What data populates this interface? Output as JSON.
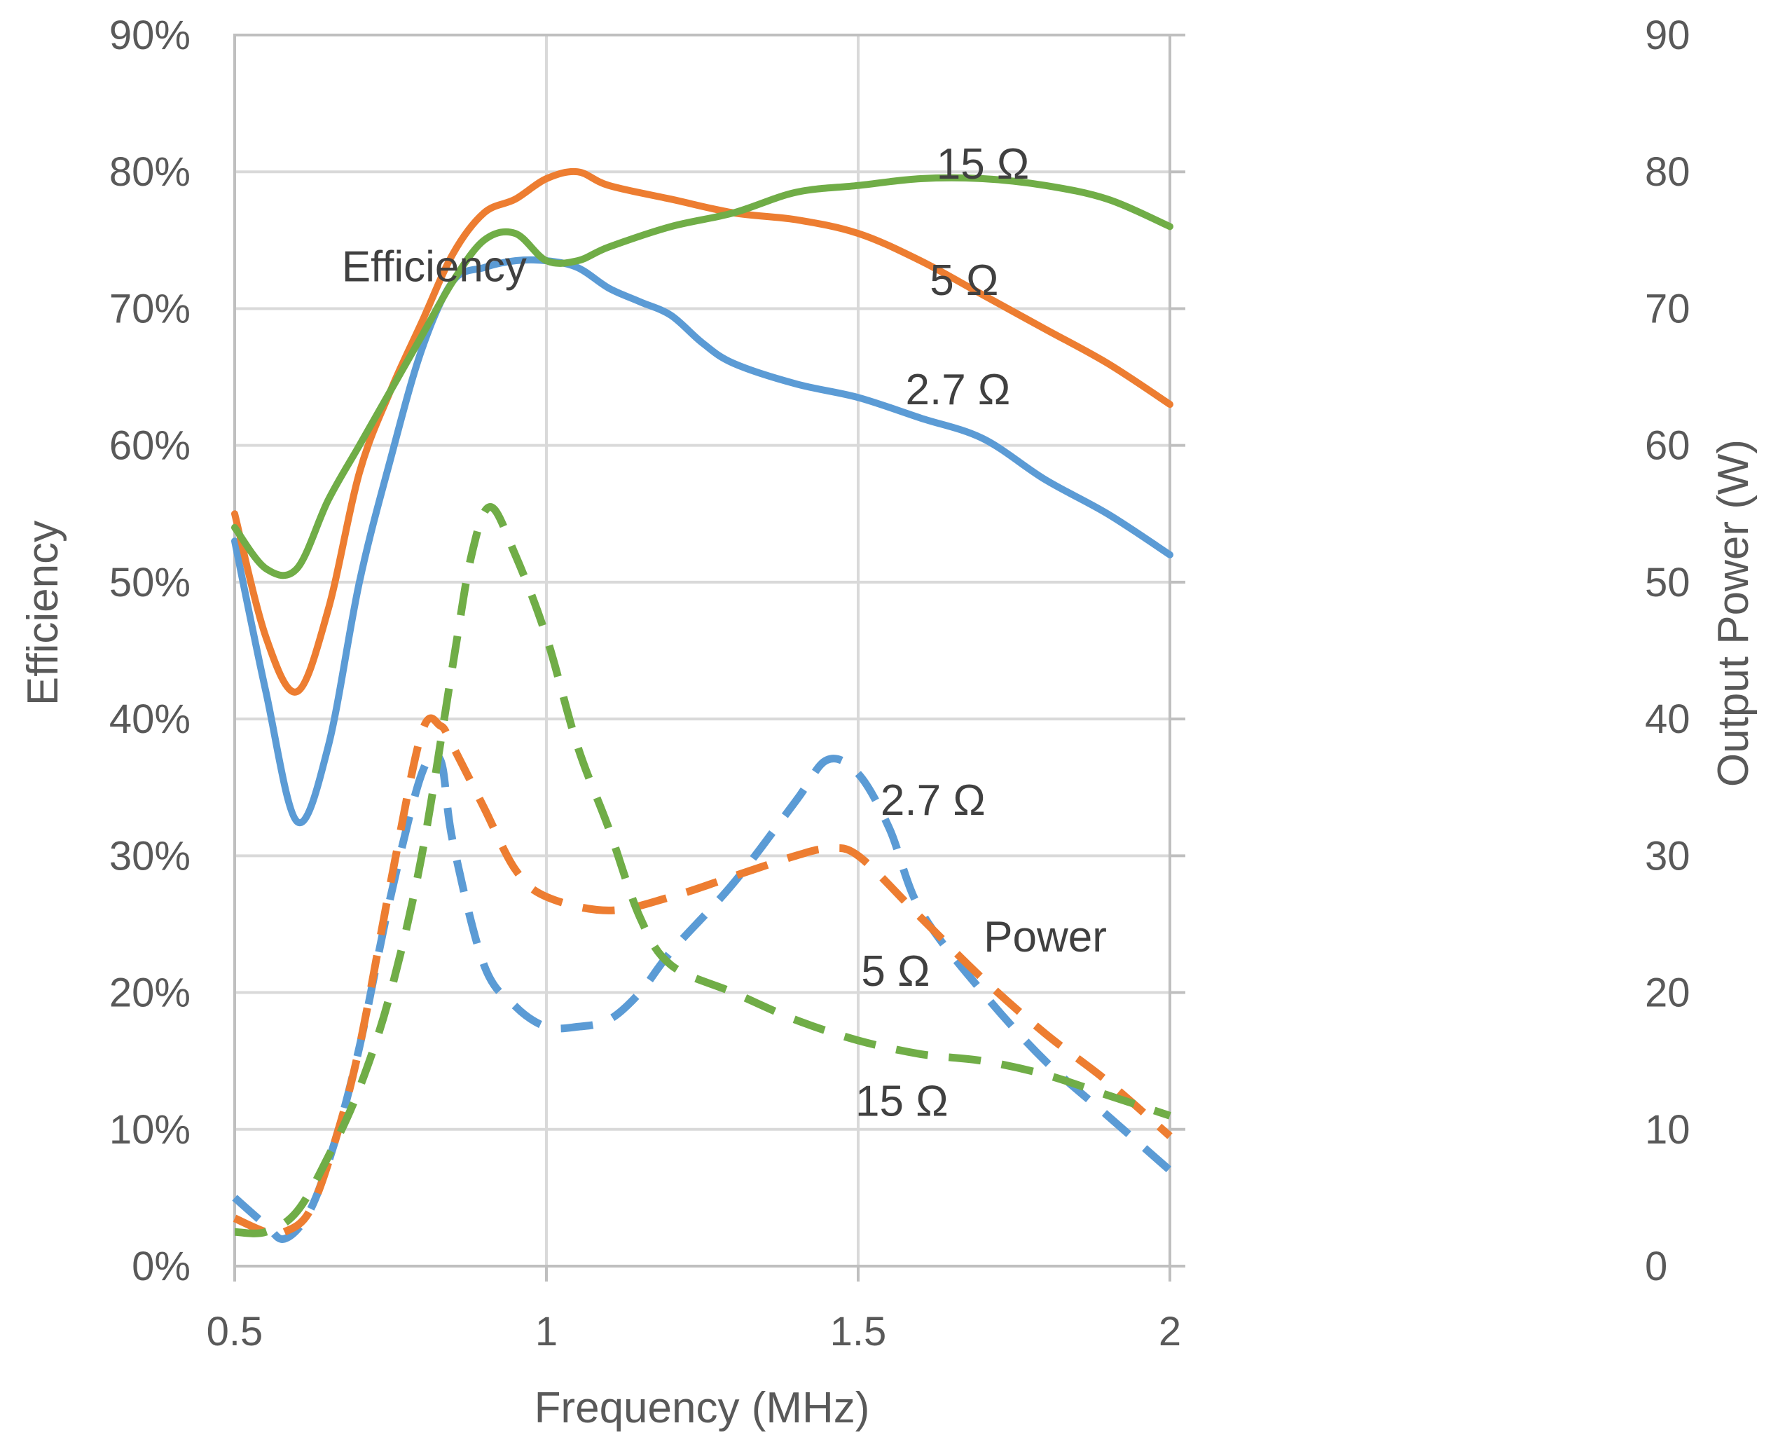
{
  "chart_data": {
    "type": "line",
    "xlabel": "Frequency (MHz)",
    "ylabel_left": "Efficiency",
    "ylabel_right": "Output Power (W)",
    "xlim": [
      0.5,
      2
    ],
    "ylim_left": [
      0,
      90
    ],
    "ylim_right": [
      0,
      90
    ],
    "x_ticks": [
      "0.5",
      "1",
      "1.5",
      "2"
    ],
    "y_ticks_left": [
      "0%",
      "10%",
      "20%",
      "30%",
      "40%",
      "50%",
      "60%",
      "70%",
      "80%",
      "90%"
    ],
    "y_ticks_right": [
      "0",
      "10",
      "20",
      "30",
      "40",
      "50",
      "60",
      "70",
      "80",
      "90"
    ],
    "grid": true,
    "colors": {
      "blue": "#5b9bd5",
      "orange": "#ed7d31",
      "green": "#70ad47"
    },
    "series": [
      {
        "group": "efficiency",
        "load": "2.7 Ω",
        "axis": "left",
        "style": "solid",
        "color": "#5b9bd5",
        "x": [
          0.5,
          0.55,
          0.6,
          0.65,
          0.7,
          0.75,
          0.8,
          0.85,
          0.9,
          0.95,
          1.0,
          1.05,
          1.1,
          1.15,
          1.2,
          1.25,
          1.3,
          1.4,
          1.5,
          1.6,
          1.7,
          1.8,
          1.9,
          2.0
        ],
        "y": [
          53,
          42,
          32.5,
          38,
          50,
          59,
          67,
          72,
          73,
          73.5,
          73.5,
          73,
          71.5,
          70.5,
          69.5,
          67.5,
          66,
          64.5,
          63.5,
          62,
          60.5,
          57.5,
          55,
          52
        ]
      },
      {
        "group": "efficiency",
        "load": "5 Ω",
        "axis": "left",
        "style": "solid",
        "color": "#ed7d31",
        "x": [
          0.5,
          0.55,
          0.6,
          0.65,
          0.7,
          0.75,
          0.8,
          0.85,
          0.9,
          0.95,
          1.0,
          1.05,
          1.1,
          1.2,
          1.3,
          1.4,
          1.5,
          1.6,
          1.7,
          1.8,
          1.9,
          2.0
        ],
        "y": [
          55,
          46,
          42,
          48,
          58,
          64,
          69,
          74,
          77,
          78,
          79.5,
          80,
          79,
          78,
          77,
          76.5,
          75.5,
          73.5,
          71,
          68.5,
          66,
          63
        ]
      },
      {
        "group": "efficiency",
        "load": "15 Ω",
        "axis": "left",
        "style": "solid",
        "color": "#70ad47",
        "x": [
          0.5,
          0.55,
          0.6,
          0.65,
          0.7,
          0.75,
          0.8,
          0.85,
          0.9,
          0.95,
          1.0,
          1.05,
          1.1,
          1.2,
          1.3,
          1.4,
          1.5,
          1.6,
          1.7,
          1.8,
          1.9,
          2.0
        ],
        "y": [
          54,
          51,
          51,
          56,
          60,
          64,
          68,
          72,
          75,
          75.5,
          73.5,
          73.5,
          74.5,
          76,
          77,
          78.5,
          79,
          79.5,
          79.5,
          79,
          78,
          76
        ]
      },
      {
        "group": "power",
        "load": "2.7 Ω",
        "axis": "right",
        "style": "dashed",
        "color": "#5b9bd5",
        "x": [
          0.5,
          0.55,
          0.58,
          0.62,
          0.66,
          0.7,
          0.75,
          0.8,
          0.83,
          0.85,
          0.9,
          0.95,
          1.0,
          1.05,
          1.1,
          1.15,
          1.2,
          1.3,
          1.4,
          1.45,
          1.5,
          1.55,
          1.6,
          1.7,
          1.8,
          1.9,
          2.0
        ],
        "y": [
          5,
          3,
          2,
          4,
          9,
          16,
          27,
          36,
          37,
          31,
          22,
          19,
          17.5,
          17.5,
          18,
          20,
          23,
          28,
          34,
          37,
          36,
          32,
          26,
          20,
          15,
          11,
          7
        ]
      },
      {
        "group": "power",
        "load": "5 Ω",
        "axis": "right",
        "style": "dashed",
        "color": "#ed7d31",
        "x": [
          0.5,
          0.55,
          0.58,
          0.62,
          0.66,
          0.7,
          0.75,
          0.8,
          0.83,
          0.85,
          0.9,
          0.95,
          1.0,
          1.1,
          1.2,
          1.3,
          1.4,
          1.45,
          1.5,
          1.6,
          1.7,
          1.8,
          1.9,
          2.0
        ],
        "y": [
          3.5,
          2.5,
          2.5,
          4,
          9,
          16,
          28,
          39,
          39.5,
          38,
          33.5,
          29,
          27,
          26,
          27,
          28.5,
          30,
          30.5,
          30,
          25.5,
          21,
          17,
          13.5,
          9.5
        ]
      },
      {
        "group": "power",
        "load": "15 Ω",
        "axis": "right",
        "style": "dashed",
        "color": "#70ad47",
        "x": [
          0.5,
          0.55,
          0.6,
          0.65,
          0.7,
          0.75,
          0.8,
          0.85,
          0.88,
          0.91,
          0.95,
          1.0,
          1.05,
          1.1,
          1.15,
          1.2,
          1.3,
          1.4,
          1.5,
          1.6,
          1.7,
          1.8,
          1.9,
          2.0
        ],
        "y": [
          2.5,
          2.5,
          4,
          8,
          13,
          20,
          30,
          44,
          52,
          55.5,
          52,
          46,
          38,
          32,
          25.5,
          22,
          20,
          18,
          16.5,
          15.5,
          15,
          14,
          12.5,
          11
        ]
      }
    ],
    "annotations": [
      {
        "text": "Efficiency",
        "x": 0.82,
        "y": 72
      },
      {
        "text": "15 Ω",
        "x": 1.7,
        "y": 79.5
      },
      {
        "text": "5 Ω",
        "x": 1.67,
        "y": 71
      },
      {
        "text": "2.7 Ω",
        "x": 1.66,
        "y": 63
      },
      {
        "text": "2.7 Ω",
        "x": 1.62,
        "y": 33
      },
      {
        "text": "Power",
        "x": 1.8,
        "y": 23
      },
      {
        "text": "5 Ω",
        "x": 1.56,
        "y": 20.5
      },
      {
        "text": "15 Ω",
        "x": 1.57,
        "y": 11
      }
    ]
  }
}
